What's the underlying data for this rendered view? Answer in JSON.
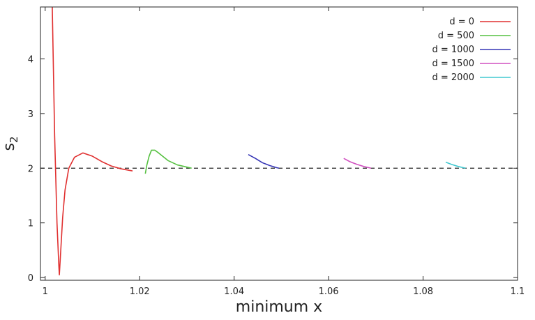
{
  "chart_data": {
    "type": "line",
    "xlabel": "minimum x",
    "ylabel": "s",
    "ylabel_subscript": "2",
    "xlim": [
      0.999,
      1.1
    ],
    "ylim": [
      -0.05,
      4.95
    ],
    "x_ticks": [
      1,
      1.02,
      1.04,
      1.06,
      1.08,
      1.1
    ],
    "x_tick_labels": [
      "1",
      "1.02",
      "1.04",
      "1.06",
      "1.08",
      "1.1"
    ],
    "y_ticks": [
      0,
      1,
      2,
      3,
      4
    ],
    "y_tick_labels": [
      "0",
      "1",
      "2",
      "3",
      "4"
    ],
    "grid": false,
    "legend_position": "top-right",
    "reference_line": {
      "y": 2,
      "style": "dashed",
      "color": "#222222"
    },
    "series": [
      {
        "name": "d = 0",
        "color": "#e03030",
        "points": [
          [
            1.0015,
            4.95
          ],
          [
            1.002,
            2.6
          ],
          [
            1.0025,
            1.0
          ],
          [
            1.0029,
            0.2
          ],
          [
            1.003,
            0.05
          ],
          [
            1.0033,
            0.5
          ],
          [
            1.0037,
            1.1
          ],
          [
            1.0042,
            1.6
          ],
          [
            1.005,
            2.0
          ],
          [
            1.0062,
            2.2
          ],
          [
            1.008,
            2.28
          ],
          [
            1.01,
            2.22
          ],
          [
            1.012,
            2.12
          ],
          [
            1.014,
            2.04
          ],
          [
            1.016,
            1.99
          ],
          [
            1.0185,
            1.95
          ]
        ]
      },
      {
        "name": "d = 500",
        "color": "#55c040",
        "points": [
          [
            1.0212,
            1.9
          ],
          [
            1.0215,
            2.05
          ],
          [
            1.022,
            2.22
          ],
          [
            1.0225,
            2.33
          ],
          [
            1.0232,
            2.33
          ],
          [
            1.024,
            2.28
          ],
          [
            1.026,
            2.14
          ],
          [
            1.028,
            2.06
          ],
          [
            1.03,
            2.02
          ],
          [
            1.031,
            2.0
          ]
        ]
      },
      {
        "name": "d = 1000",
        "color": "#3535b5",
        "points": [
          [
            1.043,
            2.25
          ],
          [
            1.0445,
            2.18
          ],
          [
            1.046,
            2.1
          ],
          [
            1.0475,
            2.05
          ],
          [
            1.049,
            2.01
          ],
          [
            1.0495,
            2.0
          ]
        ]
      },
      {
        "name": "d = 1500",
        "color": "#d050c0",
        "points": [
          [
            1.0632,
            2.18
          ],
          [
            1.0645,
            2.12
          ],
          [
            1.066,
            2.07
          ],
          [
            1.0675,
            2.03
          ],
          [
            1.069,
            2.0
          ]
        ]
      },
      {
        "name": "d = 2000",
        "color": "#40c8d0",
        "points": [
          [
            1.0848,
            2.11
          ],
          [
            1.086,
            2.07
          ],
          [
            1.0875,
            2.03
          ],
          [
            1.089,
            2.0
          ]
        ]
      }
    ]
  }
}
